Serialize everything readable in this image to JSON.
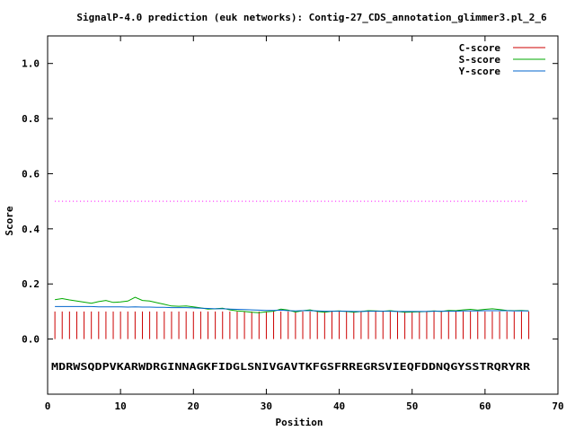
{
  "chart_data": {
    "type": "line",
    "title": "SignalP-4.0 prediction (euk networks): Contig-27_CDS_annotation_glimmer3.pl_2_6",
    "xlabel": "Position",
    "ylabel": "Score",
    "xlim": [
      0,
      70
    ],
    "ylim": [
      -0.2,
      1.1
    ],
    "x_ticks": [
      "0",
      "10",
      "20",
      "30",
      "40",
      "50",
      "60",
      "70"
    ],
    "y_ticks": [
      "0.0",
      "0.2",
      "0.4",
      "0.6",
      "0.8",
      "1.0"
    ],
    "x_tick_values": [
      0,
      10,
      20,
      30,
      40,
      50,
      60,
      70
    ],
    "y_tick_values": [
      0.0,
      0.2,
      0.4,
      0.6,
      0.8,
      1.0
    ],
    "legend_position": "top-right",
    "grid": false,
    "sequence": "MDRWSQDPVKARWDRGINNAGKFIDGLSNIVGAVTKFGSFRREGRSVIEQFDDNQGYSSTRQRYRR",
    "threshold": {
      "value": 0.5,
      "color": "#ff00ff",
      "x_range": [
        1,
        66
      ]
    },
    "series": [
      {
        "name": "C-score",
        "color": "#cc0000",
        "style": "impulse",
        "x_start": 1,
        "values": [
          0.1,
          0.1,
          0.1,
          0.1,
          0.1,
          0.1,
          0.1,
          0.1,
          0.1,
          0.1,
          0.1,
          0.1,
          0.1,
          0.1,
          0.1,
          0.1,
          0.1,
          0.1,
          0.1,
          0.1,
          0.1,
          0.1,
          0.1,
          0.1,
          0.1,
          0.1,
          0.1,
          0.1,
          0.1,
          0.1,
          0.1,
          0.1,
          0.1,
          0.1,
          0.1,
          0.1,
          0.1,
          0.1,
          0.1,
          0.1,
          0.1,
          0.1,
          0.1,
          0.1,
          0.1,
          0.1,
          0.1,
          0.1,
          0.1,
          0.1,
          0.1,
          0.1,
          0.1,
          0.1,
          0.1,
          0.1,
          0.1,
          0.1,
          0.1,
          0.1,
          0.1,
          0.1,
          0.1,
          0.1,
          0.1,
          0.1
        ]
      },
      {
        "name": "S-score",
        "color": "#00aa00",
        "style": "line",
        "x_start": 1,
        "values": [
          0.143,
          0.147,
          0.142,
          0.138,
          0.134,
          0.13,
          0.136,
          0.14,
          0.133,
          0.135,
          0.138,
          0.152,
          0.14,
          0.138,
          0.132,
          0.126,
          0.12,
          0.119,
          0.12,
          0.117,
          0.113,
          0.109,
          0.11,
          0.112,
          0.106,
          0.102,
          0.1,
          0.097,
          0.096,
          0.099,
          0.101,
          0.109,
          0.105,
          0.098,
          0.103,
          0.106,
          0.1,
          0.097,
          0.101,
          0.102,
          0.1,
          0.097,
          0.1,
          0.103,
          0.102,
          0.101,
          0.103,
          0.1,
          0.097,
          0.098,
          0.099,
          0.1,
          0.102,
          0.1,
          0.104,
          0.103,
          0.106,
          0.108,
          0.105,
          0.108,
          0.11,
          0.107,
          0.104,
          0.103,
          0.104,
          0.102
        ]
      },
      {
        "name": "Y-score",
        "color": "#0066cc",
        "style": "line",
        "x_start": 1,
        "values": [
          0.118,
          0.118,
          0.118,
          0.118,
          0.118,
          0.118,
          0.117,
          0.117,
          0.117,
          0.117,
          0.116,
          0.117,
          0.116,
          0.116,
          0.115,
          0.115,
          0.114,
          0.114,
          0.114,
          0.113,
          0.112,
          0.111,
          0.11,
          0.11,
          0.109,
          0.108,
          0.107,
          0.106,
          0.105,
          0.104,
          0.104,
          0.105,
          0.103,
          0.102,
          0.103,
          0.103,
          0.102,
          0.101,
          0.101,
          0.101,
          0.101,
          0.1,
          0.1,
          0.101,
          0.101,
          0.101,
          0.101,
          0.1,
          0.1,
          0.1,
          0.1,
          0.1,
          0.101,
          0.101,
          0.101,
          0.101,
          0.102,
          0.102,
          0.102,
          0.103,
          0.103,
          0.103,
          0.103,
          0.102,
          0.102,
          0.102
        ]
      }
    ]
  }
}
